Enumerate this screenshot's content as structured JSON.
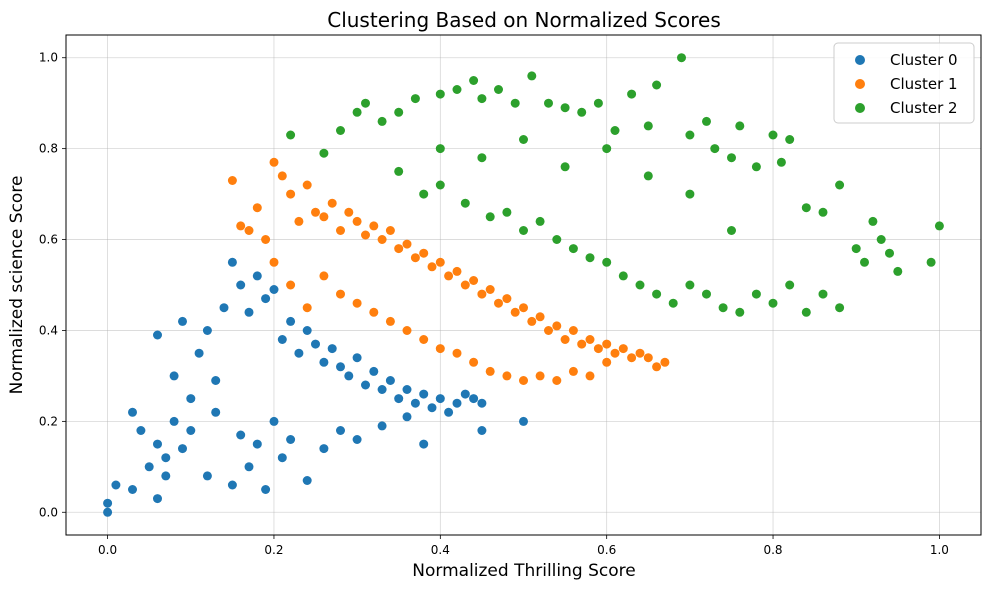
{
  "chart_data": {
    "type": "scatter",
    "title": "Clustering Based on Normalized Scores",
    "xlabel": "Normalized Thrilling Score",
    "ylabel": "Normalized science Score",
    "xlim": [
      -0.05,
      1.05
    ],
    "ylim": [
      -0.05,
      1.05
    ],
    "xticks": [
      "0.0",
      "0.2",
      "0.4",
      "0.6",
      "0.8",
      "1.0"
    ],
    "yticks": [
      "0.0",
      "0.2",
      "0.4",
      "0.6",
      "0.8",
      "1.0"
    ],
    "grid": true,
    "legend_position": "top-right",
    "series": [
      {
        "name": "Cluster 0",
        "color": "#1f77b4",
        "x": [
          0.0,
          0.0,
          0.01,
          0.03,
          0.03,
          0.04,
          0.05,
          0.06,
          0.06,
          0.07,
          0.08,
          0.08,
          0.09,
          0.1,
          0.11,
          0.12,
          0.13,
          0.14,
          0.15,
          0.16,
          0.17,
          0.18,
          0.19,
          0.2,
          0.21,
          0.22,
          0.23,
          0.24,
          0.25,
          0.26,
          0.27,
          0.28,
          0.29,
          0.3,
          0.31,
          0.32,
          0.33,
          0.34,
          0.35,
          0.36,
          0.37,
          0.38,
          0.39,
          0.4,
          0.41,
          0.42,
          0.43,
          0.44,
          0.45,
          0.5,
          0.45,
          0.38,
          0.12,
          0.15,
          0.17,
          0.19,
          0.21,
          0.24,
          0.09,
          0.1,
          0.13,
          0.16,
          0.18,
          0.2,
          0.22,
          0.26,
          0.28,
          0.3,
          0.33,
          0.36,
          0.06,
          0.07
        ],
        "y": [
          0.0,
          0.02,
          0.06,
          0.05,
          0.22,
          0.18,
          0.1,
          0.15,
          0.39,
          0.12,
          0.2,
          0.3,
          0.42,
          0.25,
          0.35,
          0.4,
          0.29,
          0.45,
          0.55,
          0.5,
          0.44,
          0.52,
          0.47,
          0.49,
          0.38,
          0.42,
          0.35,
          0.4,
          0.37,
          0.33,
          0.36,
          0.32,
          0.3,
          0.34,
          0.28,
          0.31,
          0.27,
          0.29,
          0.25,
          0.27,
          0.24,
          0.26,
          0.23,
          0.25,
          0.22,
          0.24,
          0.26,
          0.25,
          0.24,
          0.2,
          0.18,
          0.15,
          0.08,
          0.06,
          0.1,
          0.05,
          0.12,
          0.07,
          0.14,
          0.18,
          0.22,
          0.17,
          0.15,
          0.2,
          0.16,
          0.14,
          0.18,
          0.16,
          0.19,
          0.21,
          0.03,
          0.08
        ]
      },
      {
        "name": "Cluster 1",
        "color": "#ff7f0e",
        "x": [
          0.15,
          0.16,
          0.17,
          0.18,
          0.19,
          0.2,
          0.21,
          0.22,
          0.23,
          0.24,
          0.25,
          0.26,
          0.27,
          0.28,
          0.29,
          0.3,
          0.31,
          0.32,
          0.33,
          0.34,
          0.35,
          0.36,
          0.37,
          0.38,
          0.39,
          0.4,
          0.41,
          0.42,
          0.43,
          0.44,
          0.45,
          0.46,
          0.47,
          0.48,
          0.49,
          0.5,
          0.51,
          0.52,
          0.53,
          0.54,
          0.55,
          0.56,
          0.57,
          0.58,
          0.59,
          0.6,
          0.61,
          0.62,
          0.63,
          0.64,
          0.65,
          0.66,
          0.67,
          0.2,
          0.22,
          0.24,
          0.26,
          0.28,
          0.3,
          0.32,
          0.34,
          0.36,
          0.38,
          0.4,
          0.42,
          0.44,
          0.46,
          0.48,
          0.5,
          0.52,
          0.54,
          0.56,
          0.58,
          0.6
        ],
        "y": [
          0.73,
          0.63,
          0.62,
          0.67,
          0.6,
          0.77,
          0.74,
          0.7,
          0.64,
          0.72,
          0.66,
          0.65,
          0.68,
          0.62,
          0.66,
          0.64,
          0.61,
          0.63,
          0.6,
          0.62,
          0.58,
          0.59,
          0.56,
          0.57,
          0.54,
          0.55,
          0.52,
          0.53,
          0.5,
          0.51,
          0.48,
          0.49,
          0.46,
          0.47,
          0.44,
          0.45,
          0.42,
          0.43,
          0.4,
          0.41,
          0.38,
          0.4,
          0.37,
          0.38,
          0.36,
          0.37,
          0.35,
          0.36,
          0.34,
          0.35,
          0.34,
          0.32,
          0.33,
          0.55,
          0.5,
          0.45,
          0.52,
          0.48,
          0.46,
          0.44,
          0.42,
          0.4,
          0.38,
          0.36,
          0.35,
          0.33,
          0.31,
          0.3,
          0.29,
          0.3,
          0.29,
          0.31,
          0.3,
          0.33
        ]
      },
      {
        "name": "Cluster 2",
        "color": "#2ca02c",
        "x": [
          0.22,
          0.26,
          0.28,
          0.3,
          0.31,
          0.33,
          0.35,
          0.37,
          0.4,
          0.42,
          0.44,
          0.45,
          0.47,
          0.49,
          0.51,
          0.53,
          0.55,
          0.57,
          0.59,
          0.61,
          0.63,
          0.65,
          0.66,
          0.69,
          0.7,
          0.72,
          0.73,
          0.75,
          0.76,
          0.78,
          0.8,
          0.81,
          0.82,
          0.84,
          0.86,
          0.88,
          0.9,
          0.91,
          0.92,
          0.93,
          0.94,
          0.95,
          0.99,
          1.0,
          0.35,
          0.38,
          0.4,
          0.43,
          0.46,
          0.48,
          0.5,
          0.52,
          0.54,
          0.56,
          0.58,
          0.6,
          0.62,
          0.64,
          0.66,
          0.68,
          0.7,
          0.72,
          0.74,
          0.76,
          0.78,
          0.8,
          0.82,
          0.84,
          0.86,
          0.88,
          0.4,
          0.45,
          0.5,
          0.55,
          0.6,
          0.65,
          0.7,
          0.75
        ],
        "y": [
          0.83,
          0.79,
          0.84,
          0.88,
          0.9,
          0.86,
          0.88,
          0.91,
          0.92,
          0.93,
          0.95,
          0.91,
          0.93,
          0.9,
          0.96,
          0.9,
          0.89,
          0.88,
          0.9,
          0.84,
          0.92,
          0.85,
          0.94,
          1.0,
          0.83,
          0.86,
          0.8,
          0.78,
          0.85,
          0.76,
          0.83,
          0.77,
          0.82,
          0.67,
          0.66,
          0.72,
          0.58,
          0.55,
          0.64,
          0.6,
          0.57,
          0.53,
          0.55,
          0.63,
          0.75,
          0.7,
          0.72,
          0.68,
          0.65,
          0.66,
          0.62,
          0.64,
          0.6,
          0.58,
          0.56,
          0.55,
          0.52,
          0.5,
          0.48,
          0.46,
          0.5,
          0.48,
          0.45,
          0.44,
          0.48,
          0.46,
          0.5,
          0.44,
          0.48,
          0.45,
          0.8,
          0.78,
          0.82,
          0.76,
          0.8,
          0.74,
          0.7,
          0.62
        ]
      }
    ]
  }
}
